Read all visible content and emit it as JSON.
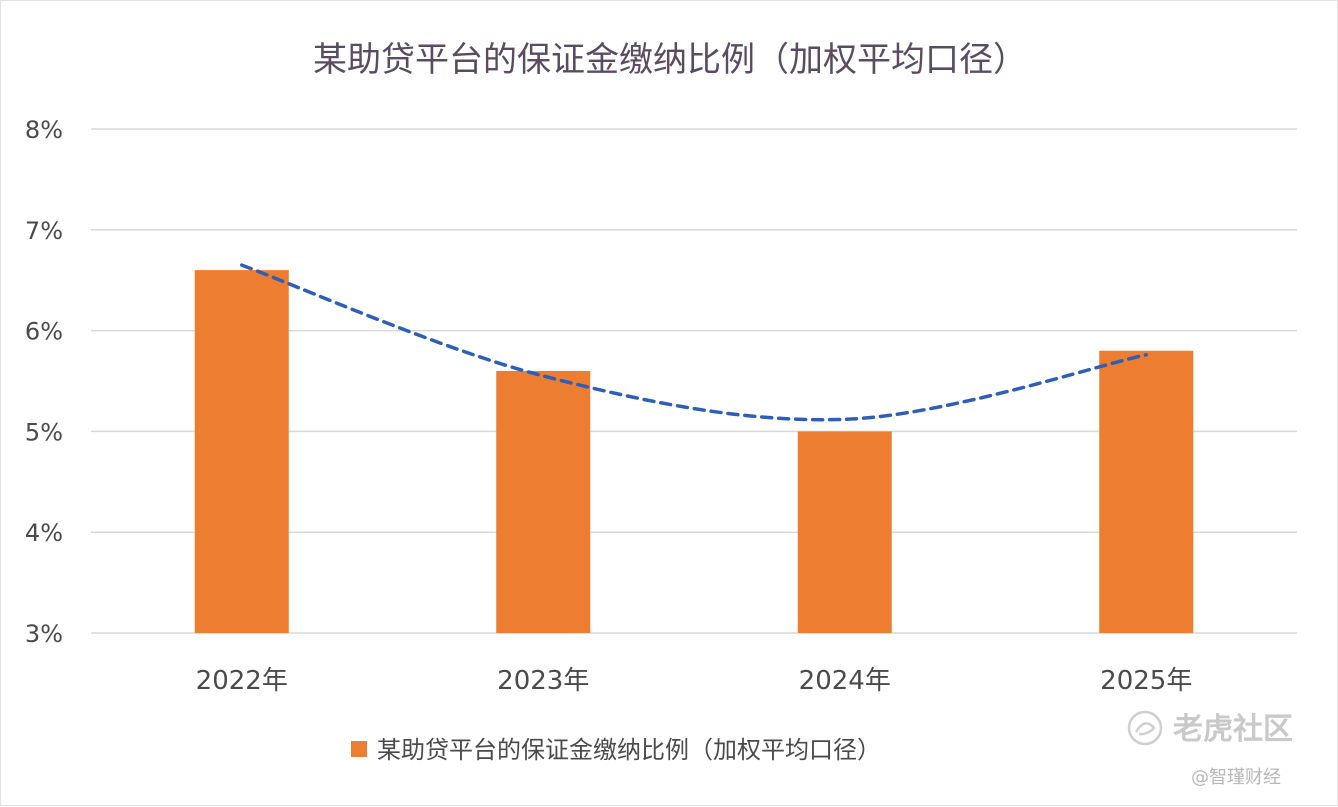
{
  "chart_data": {
    "type": "bar",
    "title": "某助贷平台的保证金缴纳比例（加权平均口径）",
    "categories": [
      "2022年",
      "2023年",
      "2024年",
      "2025年"
    ],
    "series": [
      {
        "name": "某助贷平台的保证金缴纳比例（加权平均口径）",
        "values": [
          6.6,
          5.6,
          5.0,
          5.8
        ],
        "color": "#ED7D31"
      }
    ],
    "trendline": {
      "style": "dashed",
      "color": "#2E5FB5",
      "values": [
        6.65,
        5.55,
        5.12,
        5.76
      ]
    },
    "ylim": [
      3,
      8
    ],
    "yticks": [
      "3%",
      "4%",
      "5%",
      "6%",
      "7%",
      "8%"
    ],
    "xlabel": "",
    "ylabel": "",
    "grid": true,
    "legend_position": "bottom"
  },
  "watermark": {
    "brand": "老虎社区",
    "credit": "@智瑾财经",
    "icon": "tiger-logo-icon"
  },
  "colors": {
    "bar": "#ED7D31",
    "trend": "#2E5FB5",
    "grid": "#d9d9d9"
  }
}
